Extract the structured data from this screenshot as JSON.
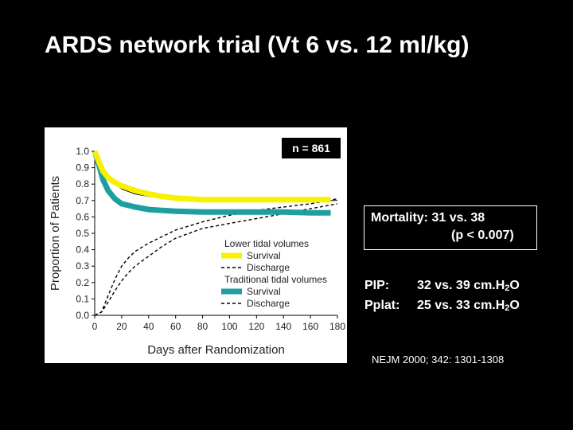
{
  "slide": {
    "title": "ARDS network trial (Vt 6 vs. 12 ml/kg)",
    "n_label": "n = 861",
    "mortality": {
      "label": "Mortality:",
      "values": "31 vs. 38",
      "p": "(p < 0.007)"
    },
    "pip": {
      "label": "PIP:",
      "value": "32 vs. 39 cm.H",
      "sub": "2",
      "unit_end": "O"
    },
    "pplat": {
      "label": "Pplat:",
      "value": "25 vs. 33 cm.H",
      "sub": "2",
      "unit_end": "O"
    },
    "citation": "NEJM 2000; 342: 1301-1308"
  },
  "colors": {
    "background": "#000000",
    "survival_lower": "#f7f000",
    "survival_traditional": "#1e9ea0",
    "discharge": "#000000"
  },
  "chart_data": {
    "type": "line",
    "xlabel": "Days after Randomization",
    "ylabel": "Proportion of Patients",
    "xlim": [
      0,
      180
    ],
    "ylim": [
      0,
      1.0
    ],
    "x_ticks": [
      "0",
      "20",
      "40",
      "60",
      "80",
      "100",
      "120",
      "140",
      "160",
      "180"
    ],
    "y_ticks": [
      "0.0",
      "0.1",
      "0.2",
      "0.3",
      "0.4",
      "0.5",
      "0.6",
      "0.7",
      "0.8",
      "0.9",
      "1.0"
    ],
    "legend": {
      "placement": "bottom-right",
      "groups": [
        {
          "heading": "Lower tidal volumes",
          "items": [
            {
              "label": "Survival",
              "series": 0
            },
            {
              "label": "Discharge",
              "series": 1
            }
          ]
        },
        {
          "heading": "Traditional tidal volumes",
          "items": [
            {
              "label": "Survival",
              "series": 2
            },
            {
              "label": "Discharge",
              "series": 3
            }
          ]
        }
      ]
    },
    "series": [
      {
        "style": "solid-thick",
        "color": "#f7f000",
        "x": [
          0,
          3,
          6,
          10,
          15,
          20,
          30,
          40,
          50,
          60,
          80,
          100,
          120,
          140,
          160,
          175
        ],
        "y": [
          1.0,
          0.94,
          0.88,
          0.84,
          0.81,
          0.79,
          0.76,
          0.74,
          0.725,
          0.715,
          0.705,
          0.705,
          0.705,
          0.705,
          0.705,
          0.705
        ]
      },
      {
        "style": "dashed",
        "color": "#000000",
        "x": [
          0,
          5,
          10,
          15,
          20,
          25,
          30,
          40,
          50,
          60,
          80,
          100,
          120,
          140,
          160,
          180
        ],
        "y": [
          0.0,
          0.02,
          0.12,
          0.22,
          0.3,
          0.35,
          0.39,
          0.44,
          0.48,
          0.52,
          0.57,
          0.61,
          0.64,
          0.66,
          0.68,
          0.71
        ]
      },
      {
        "style": "solid-thick",
        "color": "#1e9ea0",
        "x": [
          0,
          3,
          6,
          10,
          15,
          20,
          30,
          40,
          50,
          60,
          80,
          100,
          120,
          140,
          160,
          175
        ],
        "y": [
          1.0,
          0.92,
          0.83,
          0.76,
          0.71,
          0.68,
          0.66,
          0.645,
          0.64,
          0.635,
          0.63,
          0.63,
          0.63,
          0.63,
          0.625,
          0.625
        ]
      },
      {
        "style": "dashed",
        "color": "#000000",
        "x": [
          0,
          5,
          10,
          15,
          20,
          25,
          30,
          40,
          50,
          60,
          80,
          100,
          120,
          140,
          160,
          180
        ],
        "y": [
          0.0,
          0.02,
          0.08,
          0.15,
          0.21,
          0.26,
          0.3,
          0.36,
          0.42,
          0.47,
          0.53,
          0.56,
          0.59,
          0.62,
          0.65,
          0.68
        ]
      },
      {
        "style": "solid-thin",
        "color": "#000000",
        "x": [
          0,
          5,
          10,
          15,
          20,
          30,
          40,
          50,
          60,
          80,
          100,
          120,
          140,
          160,
          180
        ],
        "y": [
          1.0,
          0.9,
          0.85,
          0.8,
          0.77,
          0.74,
          0.725,
          0.715,
          0.705,
          0.7,
          0.7,
          0.7,
          0.7,
          0.7,
          0.7
        ]
      }
    ]
  }
}
